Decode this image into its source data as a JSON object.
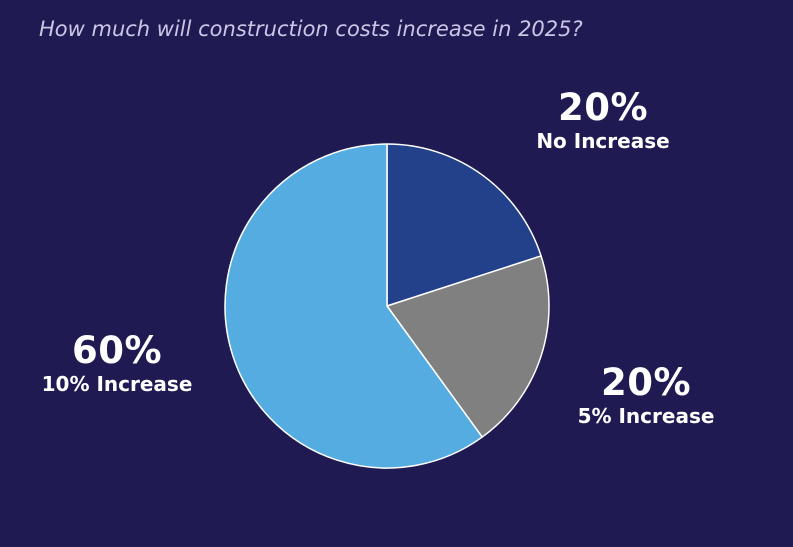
{
  "header": {
    "question": "How much will construction costs increase in 2025?"
  },
  "chart_data": {
    "type": "pie",
    "title": "How much will construction costs increase in 2025?",
    "slices": [
      {
        "label": "No Increase",
        "value": 20,
        "display": "20%",
        "color": "#23408A"
      },
      {
        "label": "5% Increase",
        "value": 20,
        "display": "20%",
        "color": "#808080"
      },
      {
        "label": "10% Increase",
        "value": 60,
        "display": "60%",
        "color": "#54ACE0"
      }
    ],
    "start_angle_deg": 0,
    "direction": "clockwise",
    "legend": "none",
    "data_labels": "outside"
  }
}
